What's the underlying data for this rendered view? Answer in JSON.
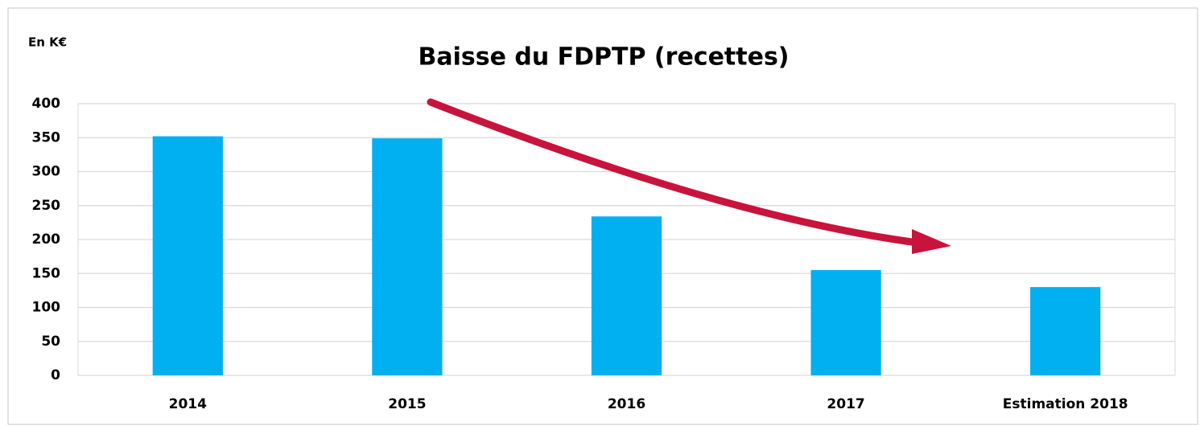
{
  "chart_data": {
    "type": "bar",
    "title": "Baisse du FDPTP (recettes)",
    "y_label": "En K€",
    "categories": [
      "2014",
      "2015",
      "2016",
      "2017",
      "Estimation 2018"
    ],
    "values": [
      352,
      349,
      234,
      155,
      130
    ],
    "color": "#00b0f0",
    "ylim": [
      0,
      400
    ],
    "yticks": [
      0,
      50,
      100,
      150,
      200,
      250,
      300,
      350,
      400
    ],
    "grid": true
  }
}
